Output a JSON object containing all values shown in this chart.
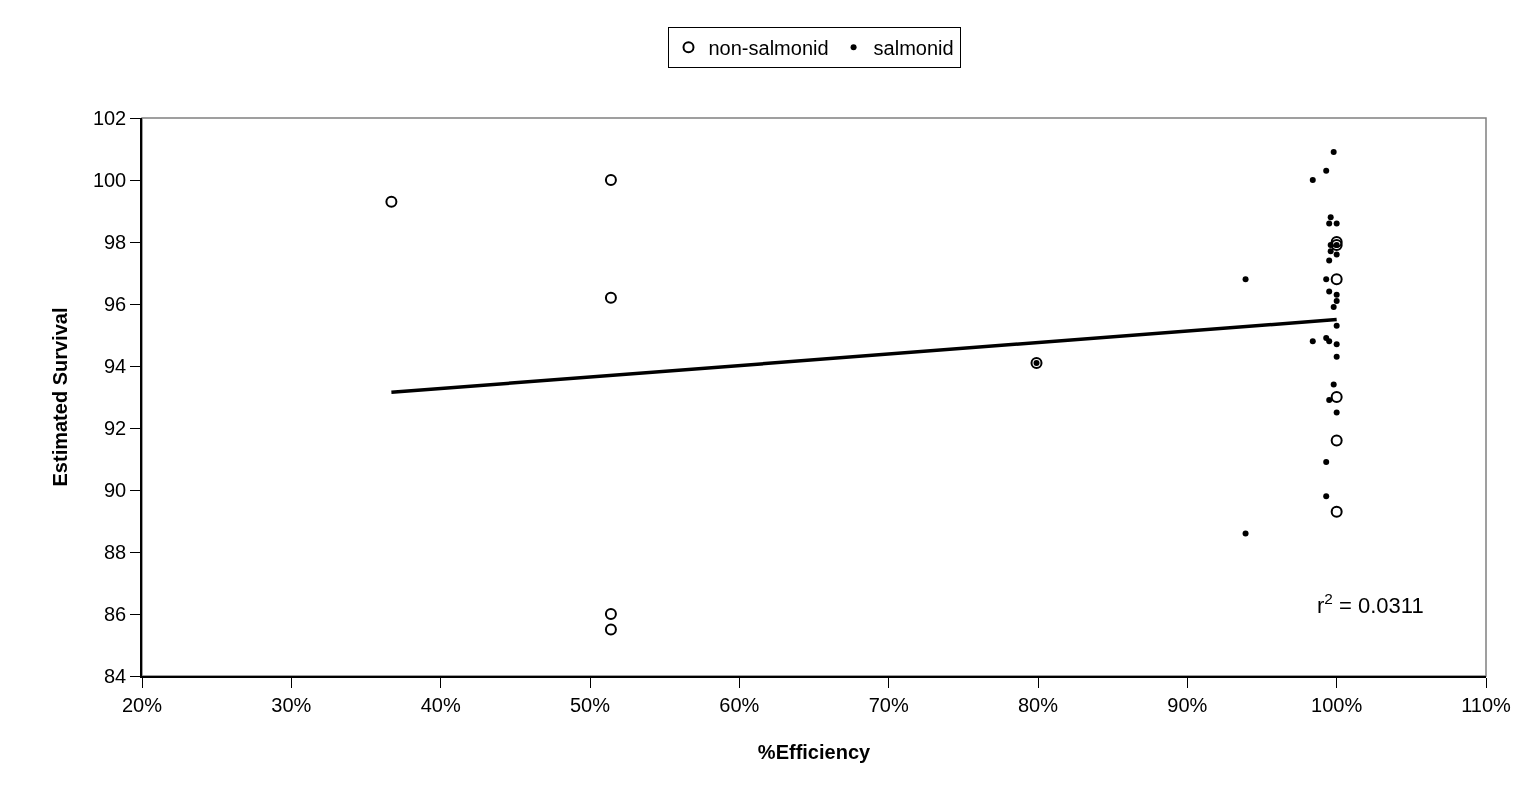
{
  "chart_data": {
    "type": "scatter",
    "xlabel": "%Efficiency",
    "ylabel": "Estimated Survival",
    "xlim": [
      20,
      110
    ],
    "ylim": [
      84,
      102
    ],
    "xticks": [
      {
        "value": 20,
        "label": "20%"
      },
      {
        "value": 30,
        "label": "30%"
      },
      {
        "value": 40,
        "label": "40%"
      },
      {
        "value": 50,
        "label": "50%"
      },
      {
        "value": 60,
        "label": "60%"
      },
      {
        "value": 70,
        "label": "70%"
      },
      {
        "value": 80,
        "label": "80%"
      },
      {
        "value": 90,
        "label": "90%"
      },
      {
        "value": 100,
        "label": "100%"
      },
      {
        "value": 110,
        "label": "110%"
      }
    ],
    "yticks": [
      84,
      86,
      88,
      90,
      92,
      94,
      96,
      98,
      100,
      102
    ],
    "grid": false,
    "legend": "top",
    "marker": "circle",
    "annotations": [
      "r$^{2}$ = 0.0311"
    ],
    "series": [
      {
        "name": "non-salmonid",
        "color": "#000000",
        "x": [
          36.7,
          51.4,
          51.4,
          51.4,
          51.4,
          79.9,
          100,
          100,
          100,
          100,
          100,
          100
        ],
        "values": [
          99.3,
          100.0,
          96.2,
          86.0,
          85.5,
          94.1,
          98.0,
          97.9,
          96.8,
          93.0,
          91.6,
          89.3
        ]
      },
      {
        "name": "salmonid",
        "color": "#000000",
        "x": [
          99.8,
          99.3,
          98.4,
          99.6,
          99.5,
          100,
          99.6,
          100,
          99.6,
          100,
          99.5,
          99.3,
          99.5,
          100,
          100,
          99.8,
          100,
          98.4,
          99.3,
          99.5,
          100,
          100,
          99.8,
          99.5,
          100,
          99.3,
          99.3,
          93.9,
          93.9,
          79.9
        ],
        "values": [
          100.9,
          100.3,
          100.0,
          98.8,
          98.6,
          98.6,
          97.9,
          97.9,
          97.7,
          97.6,
          97.4,
          96.8,
          96.4,
          96.3,
          96.1,
          95.9,
          95.3,
          94.8,
          94.9,
          94.8,
          94.7,
          94.3,
          93.4,
          92.9,
          92.5,
          90.9,
          89.8,
          88.6,
          96.8,
          94.1
        ]
      },
      {
        "type": "line",
        "color": "#000000",
        "line_style": "solid",
        "marker": "none",
        "x": [
          36.7,
          100
        ],
        "values": [
          93.15,
          95.5
        ]
      }
    ]
  }
}
